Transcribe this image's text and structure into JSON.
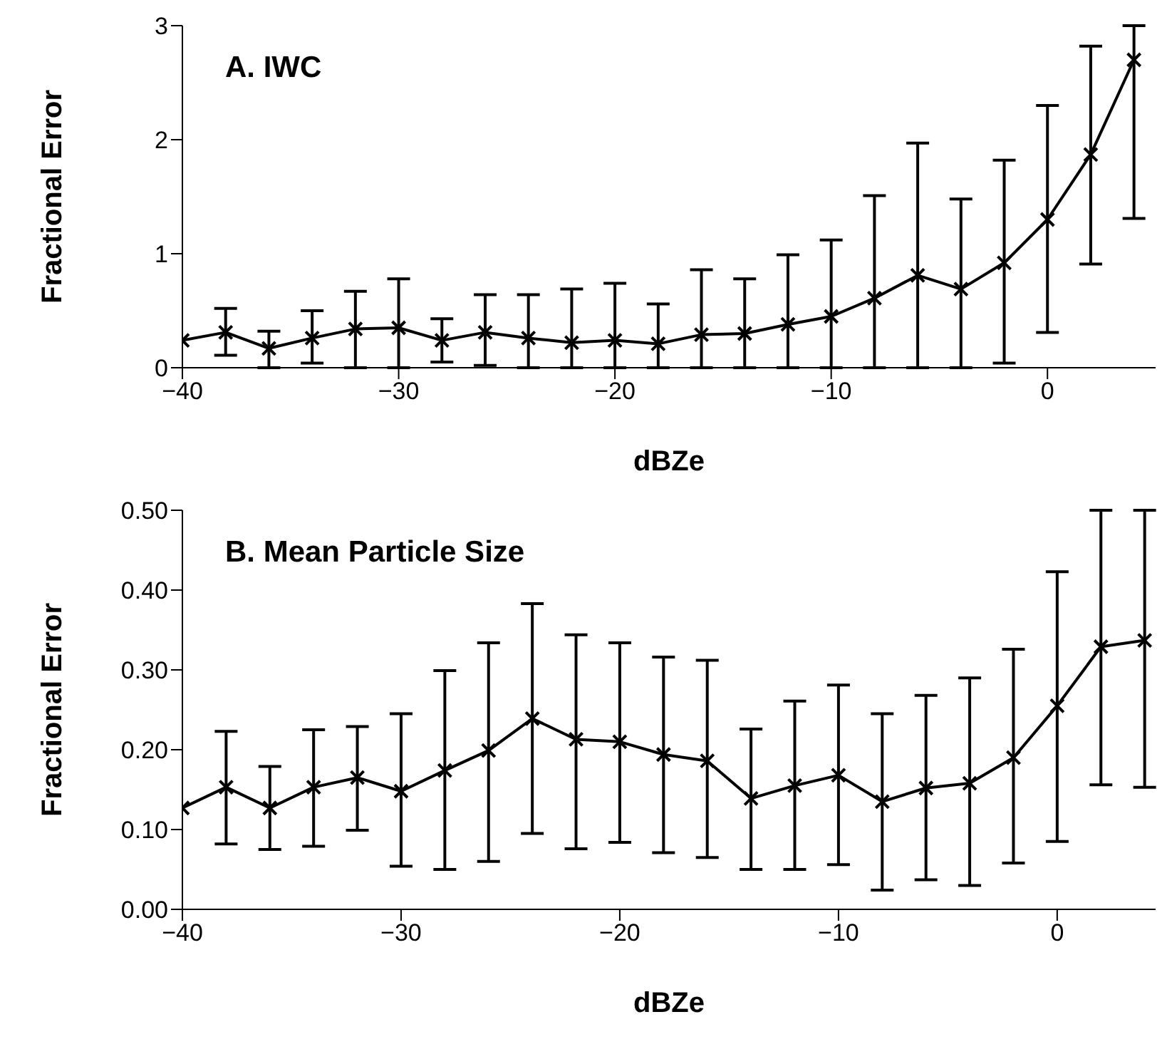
{
  "chart_data": [
    {
      "type": "line",
      "title": "A.  IWC",
      "xlabel": "dBZe",
      "ylabel": "Fractional Error",
      "color": "#000000",
      "marker": "cross",
      "line_style": "solid",
      "x": [
        -40,
        -38,
        -36,
        -34,
        -32,
        -30,
        -28,
        -26,
        -24,
        -22,
        -20,
        -18,
        -16,
        -14,
        -12,
        -10,
        -8,
        -6,
        -4,
        -2,
        0,
        2,
        4
      ],
      "values": [
        0.24,
        0.31,
        0.17,
        0.26,
        0.34,
        0.35,
        0.24,
        0.31,
        0.26,
        0.22,
        0.24,
        0.21,
        0.29,
        0.3,
        0.38,
        0.45,
        0.61,
        0.81,
        0.69,
        0.92,
        1.3,
        1.87,
        2.7
      ],
      "errors": [
        null,
        [
          0.11,
          0.52
        ],
        [
          0,
          0.32
        ],
        [
          0.04,
          0.5
        ],
        [
          0,
          0.67
        ],
        [
          0,
          0.78
        ],
        [
          0.05,
          0.43
        ],
        [
          0.02,
          0.64
        ],
        [
          0,
          0.64
        ],
        [
          0,
          0.69
        ],
        [
          0,
          0.74
        ],
        [
          0,
          0.56
        ],
        [
          0,
          0.86
        ],
        [
          0,
          0.78
        ],
        [
          0,
          0.99
        ],
        [
          0,
          1.12
        ],
        [
          0,
          1.51
        ],
        [
          0,
          1.97
        ],
        [
          0,
          1.48
        ],
        [
          0.04,
          1.82
        ],
        [
          0.31,
          2.3
        ],
        [
          0.91,
          2.82
        ],
        [
          1.31,
          3
        ]
      ],
      "xlim": [
        -40,
        5
      ],
      "xticks": [
        {
          "value": -40,
          "label": "−40"
        },
        {
          "value": -30,
          "label": "−30"
        },
        {
          "value": -20,
          "label": "−20"
        },
        {
          "value": -10,
          "label": "−10"
        },
        0
      ],
      "ylim": [
        0,
        3
      ],
      "yticks": [
        0,
        1,
        2,
        3
      ]
    },
    {
      "type": "line",
      "title": "B.  Mean Particle Size",
      "xlabel": "dBZe",
      "ylabel": "Fractional Error",
      "color": "#000000",
      "marker": "cross",
      "line_style": "solid",
      "x": [
        -40,
        -38,
        -36,
        -34,
        -32,
        -30,
        -28,
        -26,
        -24,
        -22,
        -20,
        -18,
        -16,
        -14,
        -12,
        -10,
        -8,
        -6,
        -4,
        -2,
        0,
        2,
        4
      ],
      "values": [
        0.127,
        0.153,
        0.127,
        0.153,
        0.165,
        0.148,
        0.174,
        0.199,
        0.239,
        0.213,
        0.21,
        0.194,
        0.186,
        0.139,
        0.155,
        0.168,
        0.135,
        0.152,
        0.158,
        0.19,
        0.255,
        0.329,
        0.337
      ],
      "errors": [
        null,
        [
          0.082,
          0.223
        ],
        [
          0.075,
          0.179
        ],
        [
          0.079,
          0.225
        ],
        [
          0.099,
          0.229
        ],
        [
          0.054,
          0.245
        ],
        [
          0.05,
          0.299
        ],
        [
          0.06,
          0.334
        ],
        [
          0.095,
          0.383
        ],
        [
          0.076,
          0.344
        ],
        [
          0.084,
          0.334
        ],
        [
          0.071,
          0.316
        ],
        [
          0.065,
          0.312
        ],
        [
          0.05,
          0.226
        ],
        [
          0.05,
          0.261
        ],
        [
          0.056,
          0.281
        ],
        [
          0.024,
          0.245
        ],
        [
          0.037,
          0.268
        ],
        [
          0.03,
          0.29
        ],
        [
          0.058,
          0.326
        ],
        [
          0.085,
          0.423
        ],
        [
          0.156,
          0.5
        ],
        [
          0.153,
          0.5
        ]
      ],
      "xlim": [
        -40,
        4.5
      ],
      "xticks": [
        {
          "value": -40,
          "label": "−40"
        },
        {
          "value": -30,
          "label": "−30"
        },
        {
          "value": -20,
          "label": "−20"
        },
        {
          "value": -10,
          "label": "−10"
        },
        0
      ],
      "ylim": [
        0,
        0.5
      ],
      "yticks": [
        {
          "value": 0,
          "label": "0.00"
        },
        {
          "value": 0.1,
          "label": "0.10"
        },
        {
          "value": 0.2,
          "label": "0.20"
        },
        {
          "value": 0.3,
          "label": "0.30"
        },
        {
          "value": 0.4,
          "label": "0.40"
        },
        {
          "value": 0.5,
          "label": "0.50"
        }
      ]
    }
  ]
}
